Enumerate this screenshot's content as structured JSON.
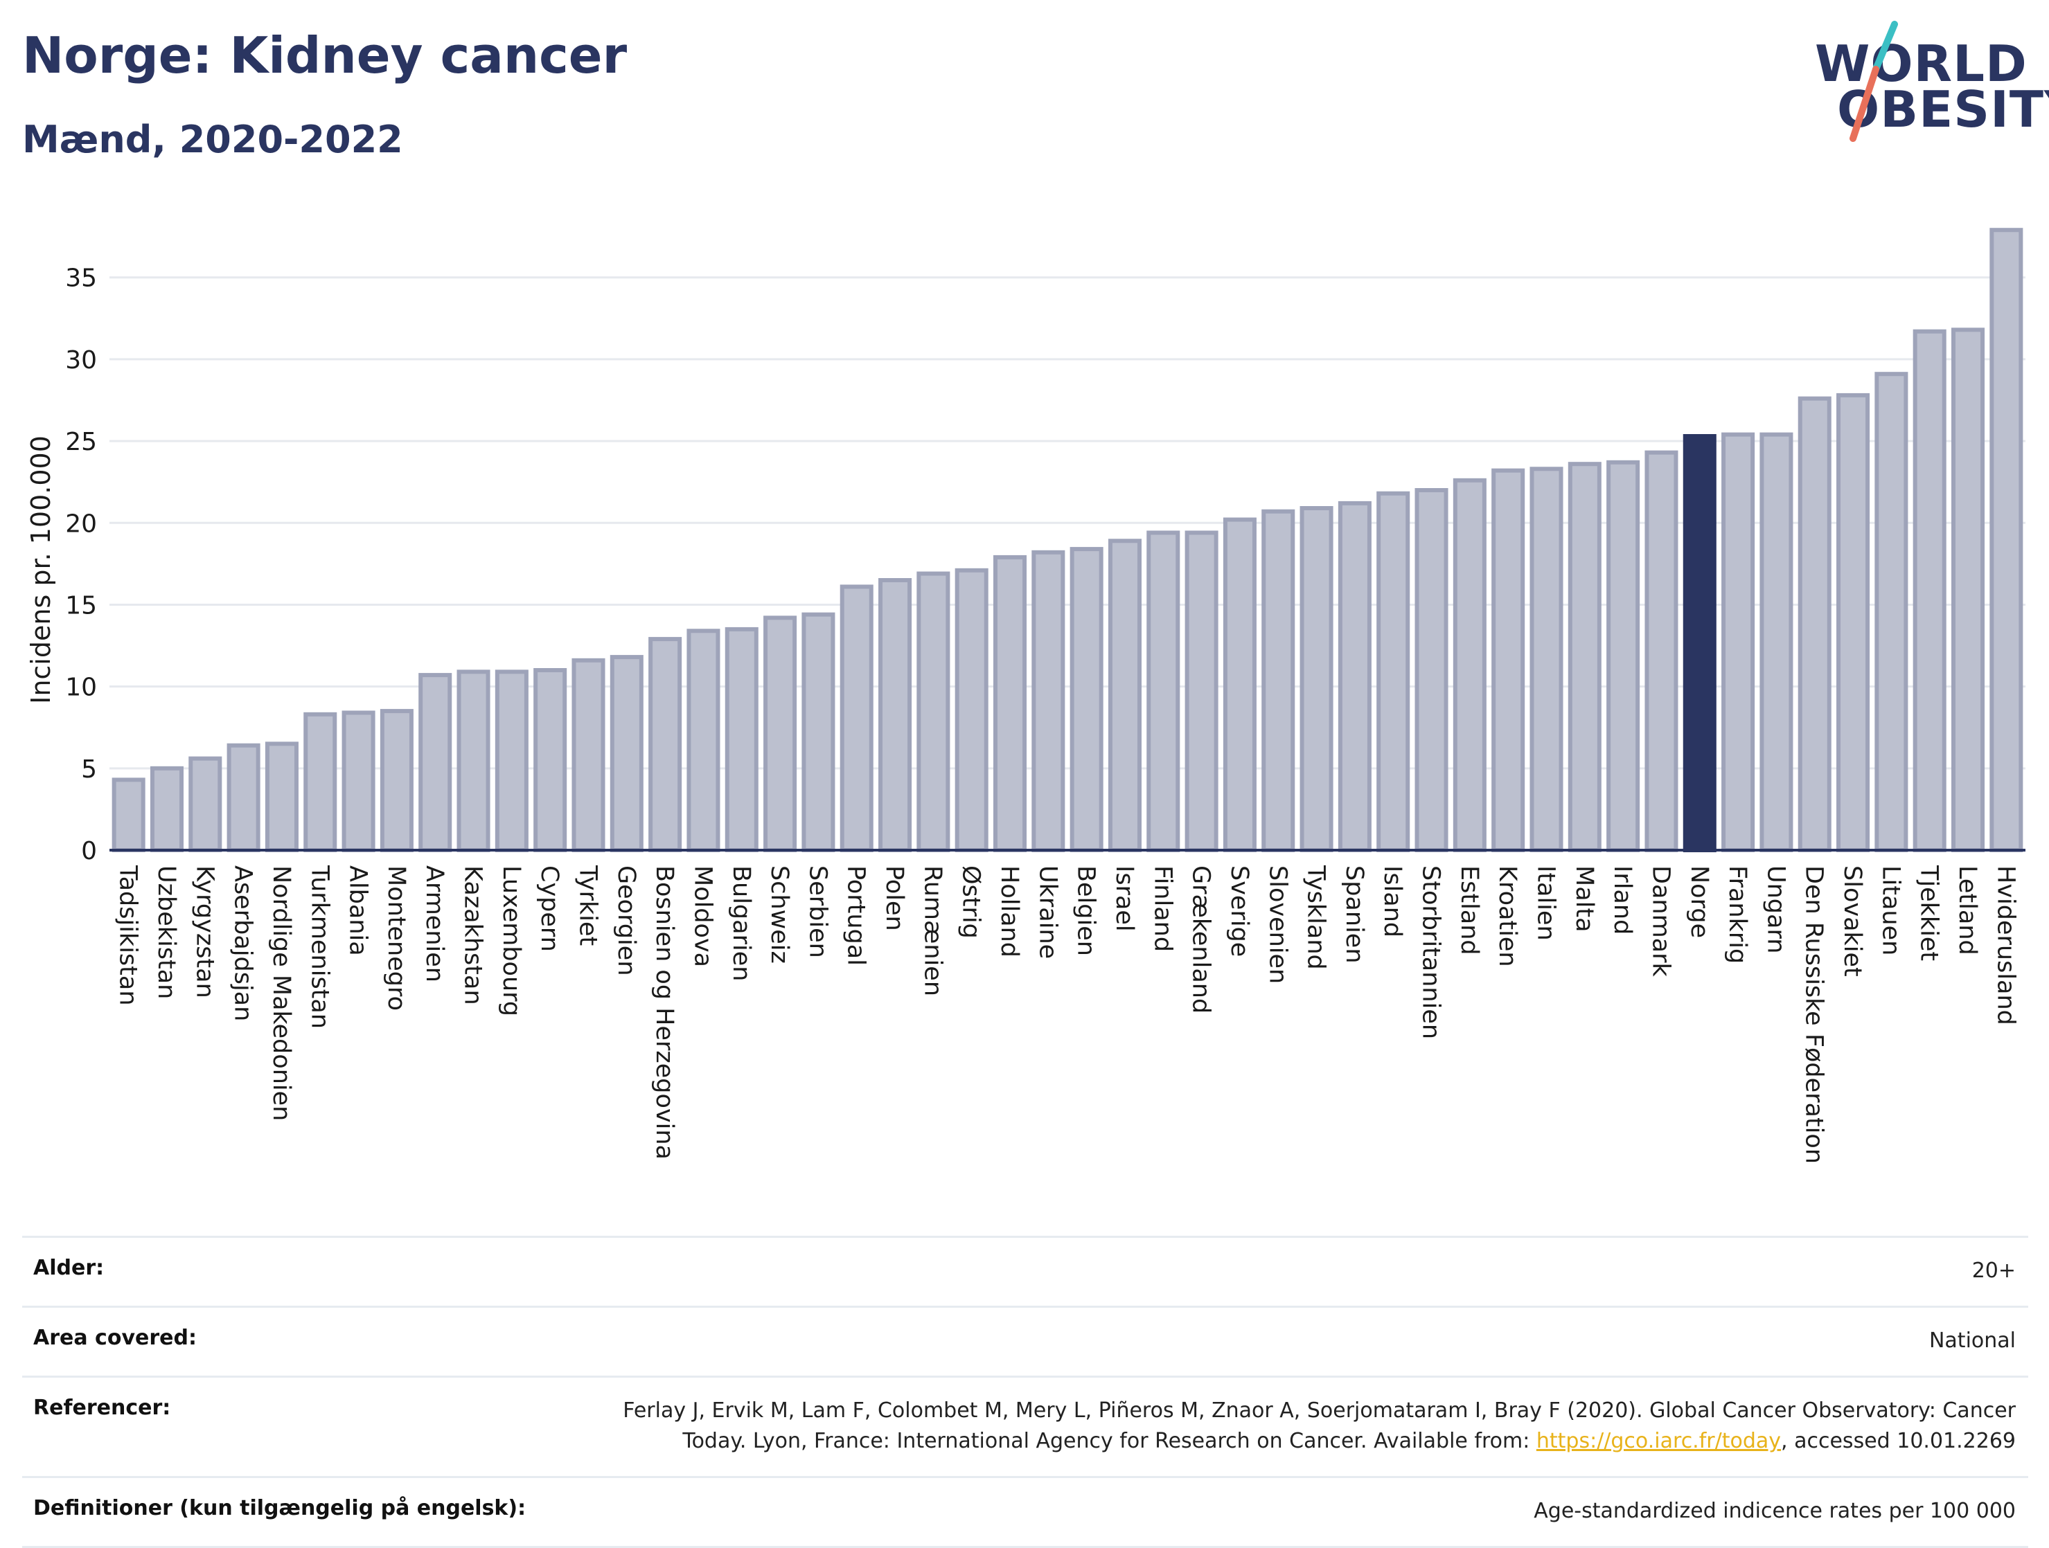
{
  "title": "Norge: Kidney cancer",
  "subtitle": "Mænd, 2020-2022",
  "logo": {
    "line1": "WORLD",
    "line2": "OBESITY"
  },
  "colors": {
    "bar": "#bcc0cf",
    "bar_stroke": "#9ea3b9",
    "highlight": "#2a3561",
    "grid": "#e6e9ee",
    "text": "#2a3561"
  },
  "chart_data": {
    "type": "bar",
    "ylabel": "Incidens pr. 100.000",
    "ylim": [
      0,
      38.5
    ],
    "yticks": [
      0,
      5,
      10,
      15,
      20,
      25,
      30,
      35
    ],
    "highlight": "Norge",
    "grid": true,
    "categories": [
      "Tadsjikistan",
      "Uzbekistan",
      "Kyrgyzstan",
      "Aserbajdsjan",
      "Nordlige Makedonien",
      "Turkmenistan",
      "Albania",
      "Montenegro",
      "Armenien",
      "Kazakhstan",
      "Luxembourg",
      "Cypern",
      "Tyrkiet",
      "Georgien",
      "Bosnien og Herzegovina",
      "Moldova",
      "Bulgarien",
      "Schweiz",
      "Serbien",
      "Portugal",
      "Polen",
      "Rumænien",
      "Østrig",
      "Holland",
      "Ukraine",
      "Belgien",
      "Israel",
      "Finland",
      "Grækenland",
      "Sverige",
      "Slovenien",
      "Tyskland",
      "Spanien",
      "Island",
      "Storbritannien",
      "Estland",
      "Kroatien",
      "Italien",
      "Malta",
      "Irland",
      "Danmark",
      "Norge",
      "Frankrig",
      "Ungarn",
      "Den Russiske Føderation",
      "Slovakiet",
      "Litauen",
      "Tjekkiet",
      "Letland",
      "Hviderusland"
    ],
    "values": [
      4.3,
      5.0,
      5.6,
      6.4,
      6.5,
      8.3,
      8.4,
      8.5,
      10.7,
      10.9,
      10.9,
      11.0,
      11.6,
      11.8,
      12.9,
      13.4,
      13.5,
      14.2,
      14.4,
      16.1,
      16.5,
      16.9,
      17.1,
      17.9,
      18.2,
      18.4,
      18.9,
      19.4,
      19.4,
      20.2,
      20.7,
      20.9,
      21.2,
      21.8,
      22.0,
      22.6,
      23.2,
      23.3,
      23.6,
      23.7,
      24.3,
      25.3,
      25.4,
      25.4,
      27.6,
      27.8,
      29.1,
      31.7,
      31.8,
      37.9
    ]
  },
  "info": {
    "rows": [
      {
        "label": "Alder:",
        "value": "20+"
      },
      {
        "label": "Area covered:",
        "value": "National"
      },
      {
        "label": "Referencer:",
        "value_line1": "Ferlay J, Ervik M, Lam F, Colombet M, Mery L, Piñeros M, Znaor A, Soerjomataram I, Bray F (2020). Global Cancer Observatory: Cancer",
        "value_line2_pre": "Today. Lyon, France: International Agency for Research on Cancer. Available from: ",
        "value_link": "https://gco.iarc.fr/today",
        "value_line2_post": ", accessed 10.01.2269"
      },
      {
        "label": "Definitioner (kun tilgængelig på engelsk):",
        "value": "Age-standardized indicence rates per 100 000"
      }
    ]
  }
}
